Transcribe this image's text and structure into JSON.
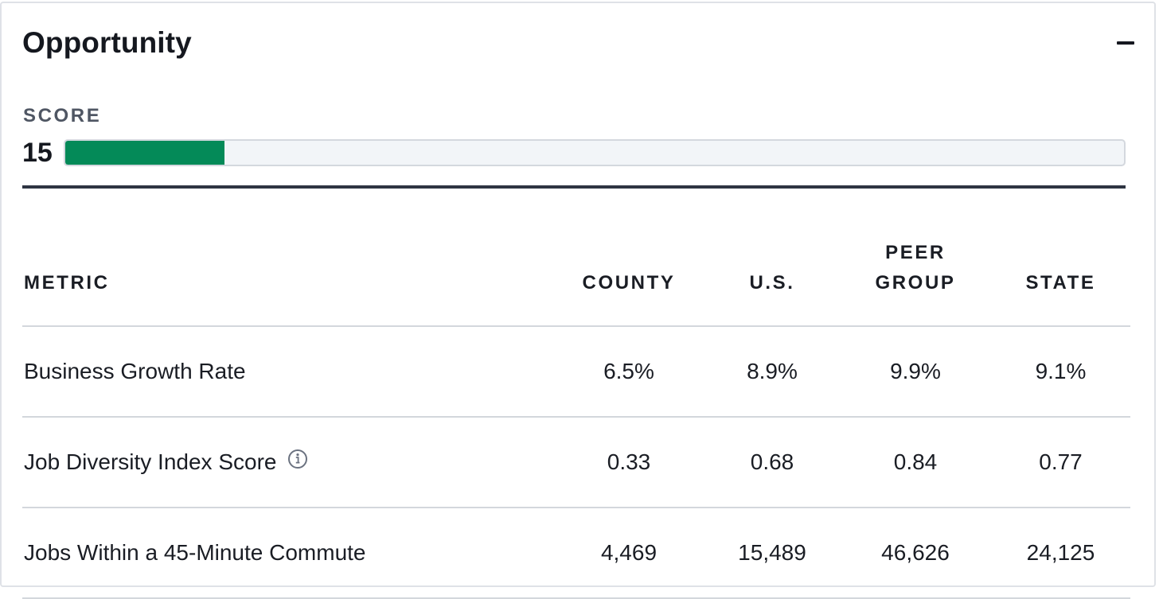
{
  "panel": {
    "title": "Opportunity",
    "collapse_icon": "minus-icon"
  },
  "score": {
    "label": "SCORE",
    "value": "15",
    "fill_percent": 15,
    "bar_color": "#048a58"
  },
  "table": {
    "headers": [
      "METRIC",
      "COUNTY",
      "U.S.",
      "PEER GROUP",
      "STATE"
    ],
    "rows": [
      {
        "metric": "Business Growth Rate",
        "county": "6.5%",
        "us": "8.9%",
        "peer": "9.9%",
        "state": "9.1%",
        "info": false
      },
      {
        "metric": "Job Diversity Index Score",
        "county": "0.33",
        "us": "0.68",
        "peer": "0.84",
        "state": "0.77",
        "info": true,
        "info_icon": "info-circle-icon"
      },
      {
        "metric": "Jobs Within a 45-Minute Commute",
        "county": "4,469",
        "us": "15,489",
        "peer": "46,626",
        "state": "24,125",
        "info": false
      }
    ]
  }
}
